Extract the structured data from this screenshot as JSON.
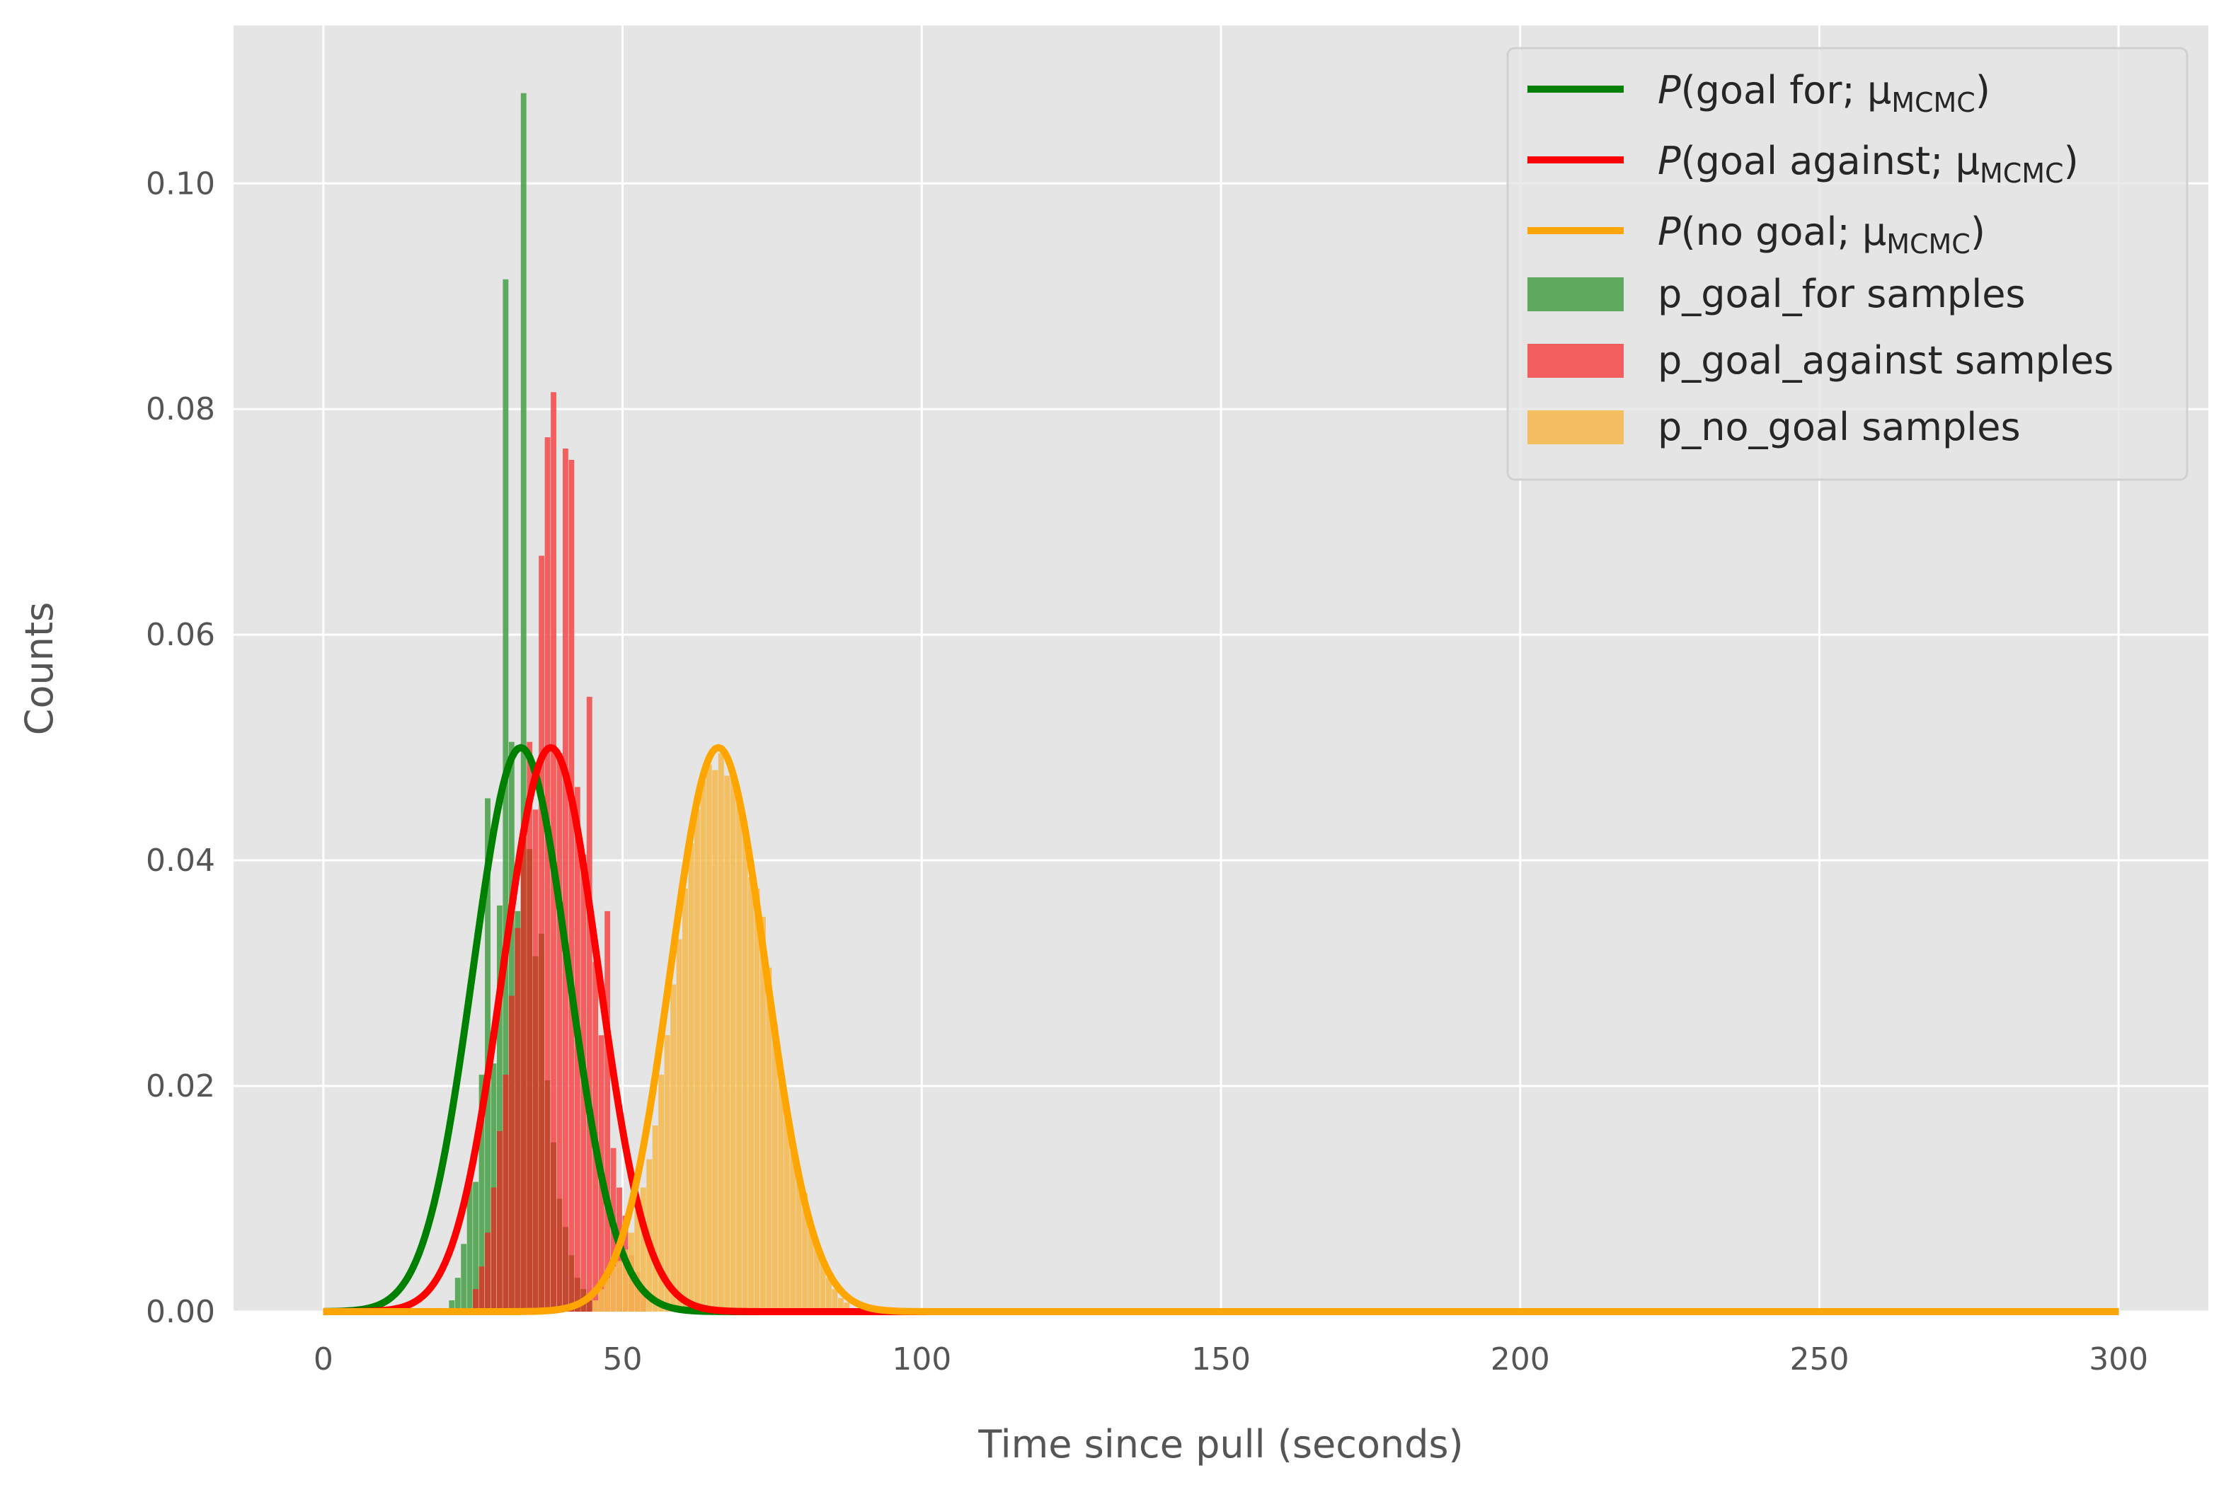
{
  "chart_data": {
    "type": "histogram",
    "xlabel": "Time since pull (seconds)",
    "ylabel": "Counts",
    "xlim": [
      -15,
      315
    ],
    "ylim": [
      0,
      0.114
    ],
    "x_ticks": [
      0,
      50,
      100,
      150,
      200,
      250,
      300
    ],
    "y_ticks": [
      0.0,
      0.02,
      0.04,
      0.06,
      0.08,
      0.1
    ],
    "x_tick_labels": [
      "0",
      "50",
      "100",
      "150",
      "200",
      "250",
      "300"
    ],
    "y_tick_labels": [
      "0.00",
      "0.02",
      "0.04",
      "0.06",
      "0.08",
      "0.10"
    ],
    "grid": true,
    "legend_position": "top-right",
    "colors": {
      "background": "#e5e5e5",
      "grid": "#ffffff",
      "goal_for": "#008000",
      "goal_against": "#ff0000",
      "no_goal": "#ffa500"
    },
    "curves": [
      {
        "name_italic": "P",
        "name_rest": "(goal for; μ",
        "name_sub": "MCMC",
        "name_close": ")",
        "color": "#008000",
        "mean": 33,
        "sigma": 7.98,
        "peak": 0.05,
        "x_range": [
          0,
          300
        ]
      },
      {
        "name_italic": "P",
        "name_rest": "(goal against; μ",
        "name_sub": "MCMC",
        "name_close": ")",
        "color": "#ff0000",
        "mean": 38,
        "sigma": 7.98,
        "peak": 0.05,
        "x_range": [
          0,
          300
        ]
      },
      {
        "name_italic": "P",
        "name_rest": "(no goal; μ",
        "name_sub": "MCMC",
        "name_close": ")",
        "color": "#ffa500",
        "mean": 66,
        "sigma": 7.98,
        "peak": 0.05,
        "x_range": [
          0,
          300
        ]
      }
    ],
    "histograms": [
      {
        "name": "p_goal_for samples",
        "color": "#4ea24e",
        "opacity": 0.9,
        "bin_width": 1.0,
        "bins": [
          [
            21,
            0.001
          ],
          [
            22,
            0.003
          ],
          [
            23,
            0.006
          ],
          [
            24,
            0.0115
          ],
          [
            25,
            0.0115
          ],
          [
            26,
            0.021
          ],
          [
            27,
            0.0455
          ],
          [
            28,
            0.022
          ],
          [
            29,
            0.036
          ],
          [
            30,
            0.0915
          ],
          [
            31,
            0.0505
          ],
          [
            32,
            0.0355
          ],
          [
            33,
            0.108
          ],
          [
            34,
            0.041
          ],
          [
            35,
            0.0315
          ],
          [
            36,
            0.0335
          ],
          [
            37,
            0.0205
          ],
          [
            38,
            0.015
          ],
          [
            39,
            0.01
          ],
          [
            40,
            0.0075
          ],
          [
            41,
            0.005
          ],
          [
            42,
            0.003
          ],
          [
            43,
            0.002
          ],
          [
            44,
            0.001
          ]
        ]
      },
      {
        "name": "p_goal_against samples",
        "color": "#f45050",
        "opacity": 0.9,
        "bin_width": 1.0,
        "bins": [
          [
            25,
            0.002
          ],
          [
            26,
            0.004
          ],
          [
            27,
            0.007
          ],
          [
            28,
            0.011
          ],
          [
            29,
            0.016
          ],
          [
            30,
            0.021
          ],
          [
            31,
            0.028
          ],
          [
            32,
            0.034
          ],
          [
            33,
            0.042
          ],
          [
            34,
            0.0505
          ],
          [
            35,
            0.0445
          ],
          [
            36,
            0.067
          ],
          [
            37,
            0.0775
          ],
          [
            38,
            0.0815
          ],
          [
            39,
            0.0495
          ],
          [
            40,
            0.0765
          ],
          [
            41,
            0.0755
          ],
          [
            42,
            0.0465
          ],
          [
            43,
            0.0405
          ],
          [
            44,
            0.0545
          ],
          [
            45,
            0.031
          ],
          [
            46,
            0.0245
          ],
          [
            47,
            0.0355
          ],
          [
            48,
            0.0145
          ],
          [
            49,
            0.011
          ],
          [
            50,
            0.0085
          ],
          [
            51,
            0.005
          ],
          [
            52,
            0.0035
          ],
          [
            53,
            0.002
          ]
        ]
      },
      {
        "name": "p_no_goal samples",
        "color": "#f5ba4f",
        "opacity": 0.88,
        "bin_width": 1.0,
        "bins": [
          [
            45,
            0.001
          ],
          [
            46,
            0.002
          ],
          [
            47,
            0.003
          ],
          [
            48,
            0.004
          ],
          [
            49,
            0.0045
          ],
          [
            50,
            0.0055
          ],
          [
            51,
            0.007
          ],
          [
            52,
            0.009
          ],
          [
            53,
            0.011
          ],
          [
            54,
            0.0135
          ],
          [
            55,
            0.0165
          ],
          [
            56,
            0.021
          ],
          [
            57,
            0.0245
          ],
          [
            58,
            0.029
          ],
          [
            59,
            0.033
          ],
          [
            60,
            0.0375
          ],
          [
            61,
            0.0415
          ],
          [
            62,
            0.0445
          ],
          [
            63,
            0.047
          ],
          [
            64,
            0.0485
          ],
          [
            65,
            0.048
          ],
          [
            66,
            0.0495
          ],
          [
            67,
            0.0475
          ],
          [
            68,
            0.048
          ],
          [
            69,
            0.046
          ],
          [
            70,
            0.0435
          ],
          [
            71,
            0.0385
          ],
          [
            72,
            0.0375
          ],
          [
            73,
            0.035
          ],
          [
            74,
            0.0305
          ],
          [
            75,
            0.0255
          ],
          [
            76,
            0.021
          ],
          [
            77,
            0.018
          ],
          [
            78,
            0.015
          ],
          [
            79,
            0.0125
          ],
          [
            80,
            0.0105
          ],
          [
            81,
            0.008
          ],
          [
            82,
            0.006
          ],
          [
            83,
            0.0045
          ],
          [
            84,
            0.003
          ],
          [
            85,
            0.002
          ],
          [
            86,
            0.0012
          ],
          [
            87,
            0.0008
          ]
        ]
      }
    ],
    "overlap_color": "#c04427"
  }
}
